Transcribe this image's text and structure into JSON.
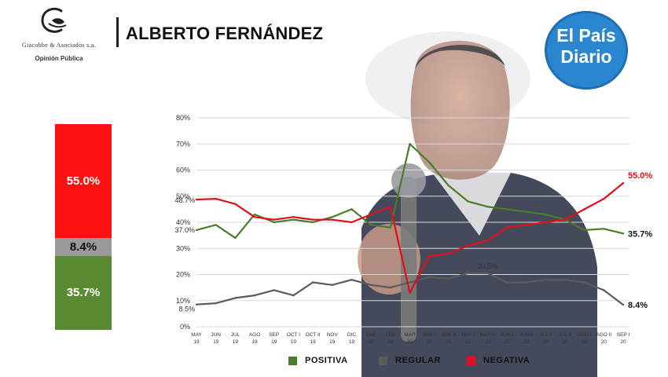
{
  "brand": {
    "name": "Giacobbe & Asociados s.a.",
    "subtitle": "Opinión Pública"
  },
  "header": {
    "title": "ALBERTO FERNÁNDEZ"
  },
  "badge": {
    "line1": "El País",
    "line2": "Diario"
  },
  "stack": {
    "negativa_label": "55.0%",
    "regular_label": "8.4%",
    "positiva_label": "35.7%"
  },
  "legend": {
    "positiva": "POSITIVA",
    "regular": "REGULAR",
    "negativa": "NEGATIVA"
  },
  "colors": {
    "positiva": "#4a7d2a",
    "regular": "#5b5b5b",
    "negativa": "#e0101a",
    "stack_positiva": "#5a8a32",
    "stack_regular": "#9a9a9a",
    "stack_negativa": "#ff1010"
  },
  "chart_data": [
    {
      "type": "bar",
      "stacked": true,
      "categories": [
        ""
      ],
      "series": [
        {
          "name": "POSITIVA",
          "values": [
            35.7
          ]
        },
        {
          "name": "REGULAR",
          "values": [
            8.4
          ]
        },
        {
          "name": "NEGATIVA",
          "values": [
            55.0
          ]
        }
      ],
      "data_labels": [
        "35.7%",
        "8.4%",
        "55.0%"
      ]
    },
    {
      "type": "line",
      "categories": [
        [
          "MAY",
          "19"
        ],
        [
          "JUN",
          "19"
        ],
        [
          "JUL",
          "19"
        ],
        [
          "AGO",
          "19"
        ],
        [
          "SEP",
          "19"
        ],
        [
          "OCT I",
          "19"
        ],
        [
          "OCT II",
          "19"
        ],
        [
          "NOV",
          "19"
        ],
        [
          "DIC",
          "19"
        ],
        [
          "ENE",
          "20"
        ],
        [
          "FEB",
          "20"
        ],
        [
          "MAR",
          "20"
        ],
        [
          "ABR I",
          "20"
        ],
        [
          "ABR II",
          "20"
        ],
        [
          "MAY I",
          "20"
        ],
        [
          "MAY II",
          "20"
        ],
        [
          "JUN I",
          "20"
        ],
        [
          "JUN II",
          "20"
        ],
        [
          "JUL I",
          "20"
        ],
        [
          "JUL II",
          "20"
        ],
        [
          "AGO I",
          "20"
        ],
        [
          "AGO II",
          "20"
        ],
        [
          "SEP I",
          "20"
        ]
      ],
      "series": [
        {
          "name": "POSITIVA",
          "values": [
            37.0,
            39.0,
            34.0,
            43.0,
            40.0,
            41.0,
            40.0,
            42.0,
            45.0,
            39.0,
            38.0,
            70.0,
            63.0,
            54.0,
            48.0,
            46.0,
            45.0,
            44.0,
            43.0,
            41.0,
            37.0,
            37.5,
            35.7
          ]
        },
        {
          "name": "REGULAR",
          "values": [
            8.5,
            9.0,
            11.0,
            12.0,
            14.0,
            12.0,
            17.0,
            16.0,
            18.0,
            16.0,
            15.0,
            17.0,
            19.0,
            18.5,
            20.5,
            20.5,
            17.0,
            17.0,
            18.0,
            18.0,
            17.0,
            14.0,
            8.4
          ]
        },
        {
          "name": "NEGATIVA",
          "values": [
            48.7,
            49.0,
            47.0,
            42.0,
            41.0,
            42.0,
            41.0,
            41.0,
            40.0,
            43.0,
            46.0,
            13.0,
            27.0,
            28.0,
            31.0,
            33.0,
            38.0,
            39.0,
            40.0,
            41.0,
            45.0,
            49.0,
            55.0
          ]
        }
      ],
      "y_ticks": [
        "0%",
        "10%",
        "20%",
        "30%",
        "40%",
        "50%",
        "60%",
        "70%",
        "80%"
      ],
      "ylim": [
        0,
        80
      ],
      "annotations": [
        {
          "series": "POSITIVA",
          "index": 0,
          "text": "37.0%"
        },
        {
          "series": "NEGATIVA",
          "index": 0,
          "text": "48.7%"
        },
        {
          "series": "REGULAR",
          "index": 0,
          "text": "8.5%"
        },
        {
          "series": "REGULAR",
          "index": 15,
          "text": "20.5%"
        },
        {
          "series": "NEGATIVA",
          "index": 22,
          "text": "55.0%"
        },
        {
          "series": "POSITIVA",
          "index": 22,
          "text": "35.7%"
        },
        {
          "series": "REGULAR",
          "index": 22,
          "text": "8.4%"
        }
      ],
      "grid": true,
      "legend_position": "bottom"
    }
  ]
}
